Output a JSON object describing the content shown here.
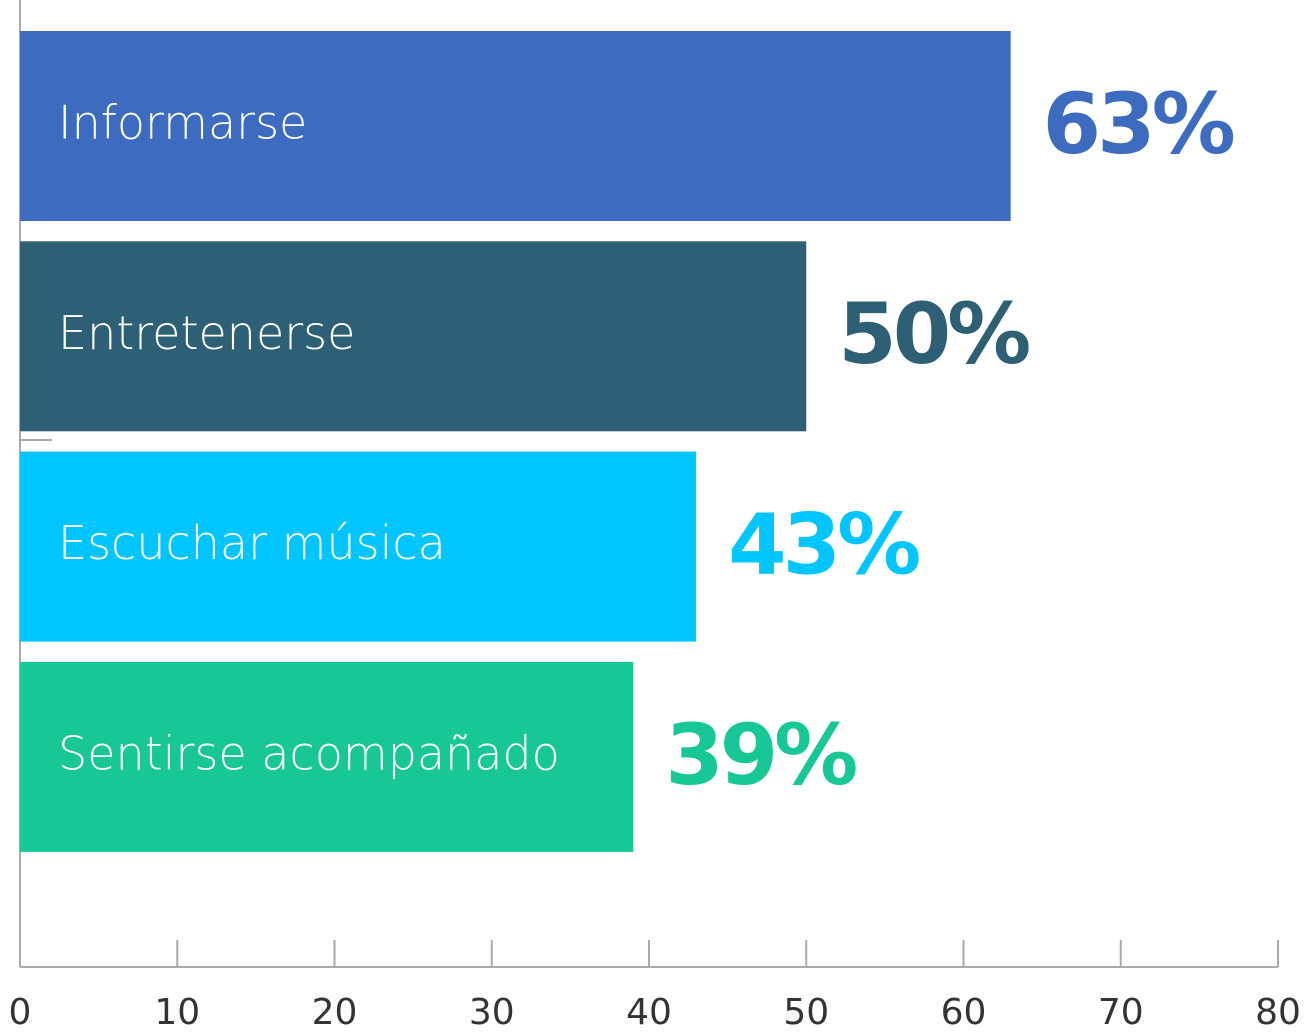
{
  "chart_data": {
    "type": "bar",
    "orientation": "horizontal",
    "categories": [
      "Informarse",
      "Entretenerse",
      "Escuchar música",
      "Sentirse acompañado"
    ],
    "values": [
      63,
      50,
      43,
      39
    ],
    "value_labels": [
      "63%",
      "50%",
      "43%",
      "39%"
    ],
    "colors": [
      "#3d6bc0",
      "#2e6075",
      "#00c5ff",
      "#17c896"
    ],
    "xlim": [
      0,
      80
    ],
    "xticks": [
      0,
      10,
      20,
      30,
      40,
      50,
      60,
      70,
      80
    ]
  }
}
